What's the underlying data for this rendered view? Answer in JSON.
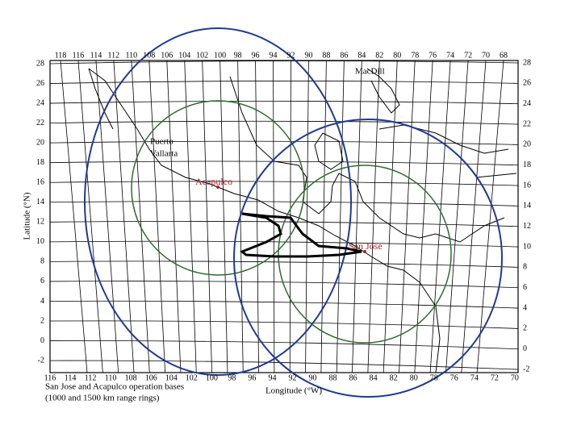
{
  "top_ticks": [
    118,
    116,
    114,
    112,
    110,
    108,
    106,
    104,
    102,
    100,
    98,
    96,
    94,
    92,
    90,
    88,
    86,
    84,
    82,
    80,
    78,
    76,
    74,
    72,
    70,
    68
  ],
  "bottom_ticks": [
    116,
    114,
    112,
    110,
    108,
    106,
    104,
    102,
    100,
    98,
    96,
    94,
    92,
    90,
    88,
    86,
    84,
    82,
    80,
    78,
    76,
    74,
    72,
    70
  ],
  "left_ticks": [
    28,
    26,
    24,
    22,
    20,
    18,
    16,
    14,
    12,
    10,
    8,
    6,
    4,
    2,
    0,
    -2
  ],
  "right_ticks": [
    28,
    26,
    24,
    22,
    20,
    18,
    16,
    14,
    12,
    10,
    8,
    6,
    4,
    2,
    0,
    -2
  ],
  "axis_labels": {
    "y": "Latitude (°N)",
    "x": "Longitude (°W)"
  },
  "places": {
    "puerto_vallarta": [
      "Puerto",
      "Vallarta"
    ],
    "acapulco": "Acapulco",
    "san_jose": "San Jose",
    "macdill": "MacDill"
  },
  "caption": [
    "San Jose and Acapulco operation bases",
    "(1000 and 1500 km range rings)"
  ]
}
